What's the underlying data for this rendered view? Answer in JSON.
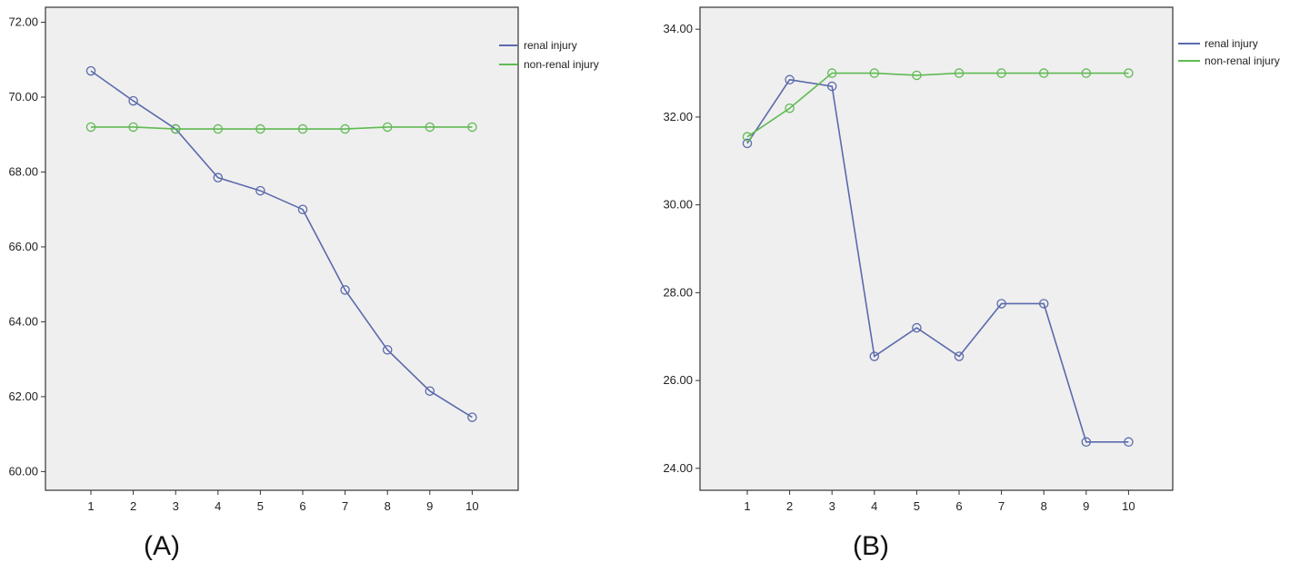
{
  "colors": {
    "renal": "#5b6aac",
    "non_renal": "#5fba52"
  },
  "chart_data": [
    {
      "type": "line",
      "panel_label": "(A)",
      "x": [
        1,
        2,
        3,
        4,
        5,
        6,
        7,
        8,
        9,
        10
      ],
      "y_ticks": [
        "60.00",
        "62.00",
        "64.00",
        "66.00",
        "68.00",
        "70.00",
        "72.00"
      ],
      "ylim": [
        59.5,
        72.4
      ],
      "grid": false,
      "legend_position": "top-right",
      "series": [
        {
          "name": "renal injury",
          "color_key": "renal",
          "values": [
            70.7,
            69.9,
            69.15,
            67.85,
            67.5,
            67.0,
            64.85,
            63.25,
            62.15,
            61.45
          ]
        },
        {
          "name": "non-renal injury",
          "color_key": "non_renal",
          "values": [
            69.2,
            69.2,
            69.15,
            69.15,
            69.15,
            69.15,
            69.15,
            69.2,
            69.2,
            69.2
          ]
        }
      ]
    },
    {
      "type": "line",
      "panel_label": "(B)",
      "x": [
        1,
        2,
        3,
        4,
        5,
        6,
        7,
        8,
        9,
        10
      ],
      "y_ticks": [
        "24.00",
        "26.00",
        "28.00",
        "30.00",
        "32.00",
        "34.00"
      ],
      "ylim": [
        23.5,
        34.5
      ],
      "grid": false,
      "legend_position": "top-right",
      "series": [
        {
          "name": "renal injury",
          "color_key": "renal",
          "values": [
            31.4,
            32.85,
            32.7,
            26.55,
            27.2,
            26.55,
            27.75,
            27.75,
            24.6,
            24.6
          ]
        },
        {
          "name": "non-renal injury",
          "color_key": "non_renal",
          "values": [
            31.55,
            32.2,
            33.0,
            33.0,
            32.95,
            33.0,
            33.0,
            33.0,
            33.0,
            33.0
          ]
        }
      ]
    }
  ]
}
